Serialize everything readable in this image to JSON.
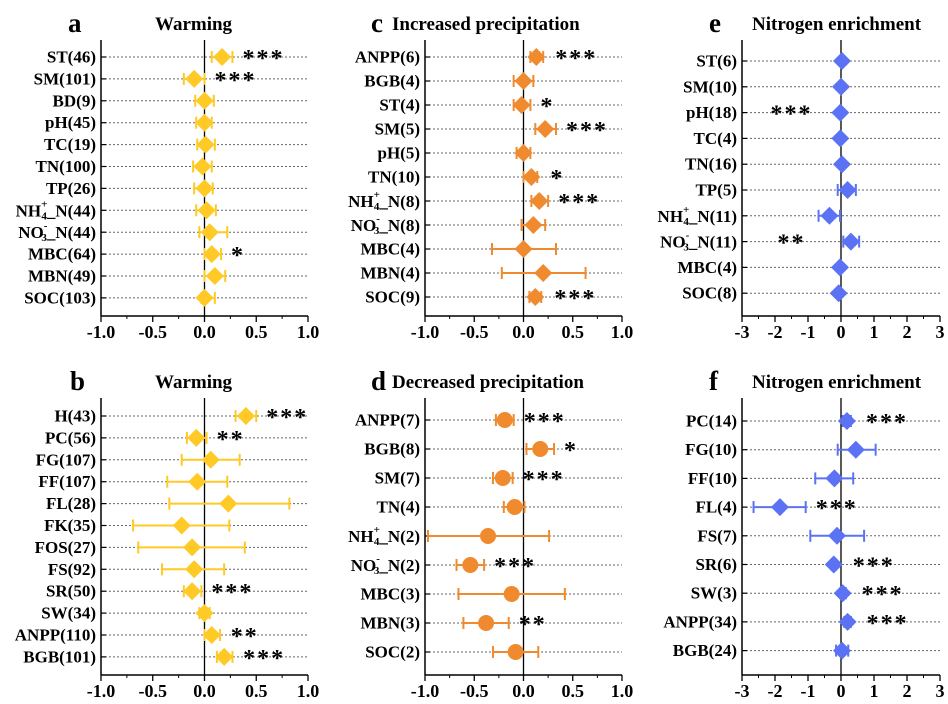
{
  "colors": {
    "warming": "#FFC926",
    "precip": "#F08A2E",
    "nitrogen": "#5B72F5"
  },
  "chart_data": [
    {
      "panel": "a",
      "title": "Warming",
      "type": "forest",
      "marker": "diamond",
      "color_key": "warming",
      "xlim": [
        -1,
        1
      ],
      "ticks": [
        -1.0,
        -0.5,
        0.0,
        0.5,
        1.0
      ],
      "tick_labels": [
        "-1.0",
        "-0.5",
        "0.0",
        "0.5",
        "1.0"
      ],
      "rows": [
        {
          "label": "ST(46)",
          "mean": 0.17,
          "lo": 0.07,
          "hi": 0.27,
          "sig": "***"
        },
        {
          "label": "SM(101)",
          "mean": -0.1,
          "lo": -0.2,
          "hi": 0.0,
          "sig": "***"
        },
        {
          "label": "BD(9)",
          "mean": 0.0,
          "lo": -0.09,
          "hi": 0.09,
          "sig": ""
        },
        {
          "label": "pH(45)",
          "mean": 0.0,
          "lo": -0.08,
          "hi": 0.07,
          "sig": ""
        },
        {
          "label": "TC(19)",
          "mean": 0.01,
          "lo": -0.07,
          "hi": 0.1,
          "sig": ""
        },
        {
          "label": "TN(100)",
          "mean": -0.02,
          "lo": -0.11,
          "hi": 0.07,
          "sig": ""
        },
        {
          "label": "TP(26)",
          "mean": 0.0,
          "lo": -0.1,
          "hi": 0.08,
          "sig": ""
        },
        {
          "label": "NH4+_N(44)",
          "mean": 0.02,
          "lo": -0.08,
          "hi": 0.11,
          "sig": ""
        },
        {
          "label": "NO3-_N(44)",
          "mean": 0.05,
          "lo": -0.05,
          "hi": 0.22,
          "sig": ""
        },
        {
          "label": "MBC(64)",
          "mean": 0.07,
          "lo": 0.0,
          "hi": 0.16,
          "sig": "*"
        },
        {
          "label": "MBN(49)",
          "mean": 0.1,
          "lo": 0.0,
          "hi": 0.2,
          "sig": ""
        },
        {
          "label": "SOC(103)",
          "mean": 0.0,
          "lo": -0.03,
          "hi": 0.1,
          "sig": ""
        }
      ]
    },
    {
      "panel": "c",
      "title": "Increased precipitation",
      "type": "forest",
      "marker": "diamond",
      "color_key": "precip",
      "xlim": [
        -1,
        1
      ],
      "ticks": [
        -1.0,
        -0.5,
        0.0,
        0.5,
        1.0
      ],
      "tick_labels": [
        "-1.0",
        "-0.5",
        "0.0",
        "0.5",
        "1.0"
      ],
      "rows": [
        {
          "label": "ANPP(6)",
          "mean": 0.13,
          "lo": 0.07,
          "hi": 0.2,
          "sig": "***"
        },
        {
          "label": "BGB(4)",
          "mean": 0.0,
          "lo": -0.1,
          "hi": 0.1,
          "sig": ""
        },
        {
          "label": "ST(4)",
          "mean": -0.02,
          "lo": -0.1,
          "hi": 0.07,
          "sig": "*"
        },
        {
          "label": "SM(5)",
          "mean": 0.22,
          "lo": 0.12,
          "hi": 0.33,
          "sig": "***"
        },
        {
          "label": "pH(5)",
          "mean": 0.0,
          "lo": -0.07,
          "hi": 0.07,
          "sig": ""
        },
        {
          "label": "TN(10)",
          "mean": 0.08,
          "lo": 0.0,
          "hi": 0.14,
          "sig": "*"
        },
        {
          "label": "NH4+_N(8)",
          "mean": 0.16,
          "lo": 0.08,
          "hi": 0.25,
          "sig": "***"
        },
        {
          "label": "NO3-_N(8)",
          "mean": 0.1,
          "lo": -0.02,
          "hi": 0.22,
          "sig": ""
        },
        {
          "label": "MBC(4)",
          "mean": 0.0,
          "lo": -0.32,
          "hi": 0.33,
          "sig": ""
        },
        {
          "label": "MBN(4)",
          "mean": 0.2,
          "lo": -0.22,
          "hi": 0.63,
          "sig": ""
        },
        {
          "label": "SOC(9)",
          "mean": 0.12,
          "lo": 0.06,
          "hi": 0.18,
          "sig": "***"
        }
      ]
    },
    {
      "panel": "e",
      "title": "Nitrogen enrichment",
      "type": "forest",
      "marker": "diamond",
      "color_key": "nitrogen",
      "xlim": [
        -3,
        3
      ],
      "ticks": [
        -3,
        -2,
        -1,
        0,
        1,
        2,
        3
      ],
      "tick_labels": [
        "-3",
        "-2",
        "-1",
        "0",
        "1",
        "2",
        "3"
      ],
      "rows": [
        {
          "label": "ST(6)",
          "mean": 0.03,
          "lo": 0.0,
          "hi": 0.06,
          "sig": ""
        },
        {
          "label": "SM(10)",
          "mean": 0.0,
          "lo": -0.03,
          "hi": 0.03,
          "sig": ""
        },
        {
          "label": "pH(18)",
          "mean": -0.02,
          "lo": -0.05,
          "hi": 0.01,
          "sig": "***"
        },
        {
          "label": "TC(4)",
          "mean": -0.02,
          "lo": -0.05,
          "hi": 0.01,
          "sig": ""
        },
        {
          "label": "TN(16)",
          "mean": 0.03,
          "lo": 0.0,
          "hi": 0.06,
          "sig": ""
        },
        {
          "label": "TP(5)",
          "mean": 0.2,
          "lo": -0.1,
          "hi": 0.45,
          "sig": ""
        },
        {
          "label": "NH4+_N(11)",
          "mean": -0.35,
          "lo": -0.68,
          "hi": -0.03,
          "sig": ""
        },
        {
          "label": "NO3-_N(11)",
          "mean": 0.3,
          "lo": 0.07,
          "hi": 0.55,
          "sig": "**"
        },
        {
          "label": "MBC(4)",
          "mean": -0.03,
          "lo": -0.06,
          "hi": 0.0,
          "sig": ""
        },
        {
          "label": "SOC(8)",
          "mean": -0.07,
          "lo": -0.1,
          "hi": -0.04,
          "sig": ""
        }
      ]
    },
    {
      "panel": "b",
      "title": "Warming",
      "type": "forest",
      "marker": "diamond",
      "color_key": "warming",
      "xlim": [
        -1,
        1
      ],
      "ticks": [
        -1.0,
        -0.5,
        0.0,
        0.5,
        1.0
      ],
      "tick_labels": [
        "-1.0",
        "-0.5",
        "0.0",
        "0.5",
        "1.0"
      ],
      "rows": [
        {
          "label": "H(43)",
          "mean": 0.4,
          "lo": 0.3,
          "hi": 0.5,
          "sig": "***"
        },
        {
          "label": "PC(56)",
          "mean": -0.08,
          "lo": -0.17,
          "hi": 0.02,
          "sig": "**"
        },
        {
          "label": "FG(107)",
          "mean": 0.06,
          "lo": -0.22,
          "hi": 0.34,
          "sig": ""
        },
        {
          "label": "FF(107)",
          "mean": -0.07,
          "lo": -0.36,
          "hi": 0.22,
          "sig": ""
        },
        {
          "label": "FL(28)",
          "mean": 0.23,
          "lo": -0.34,
          "hi": 0.82,
          "sig": ""
        },
        {
          "label": "FK(35)",
          "mean": -0.22,
          "lo": -0.69,
          "hi": 0.24,
          "sig": ""
        },
        {
          "label": "FOS(27)",
          "mean": -0.12,
          "lo": -0.64,
          "hi": 0.39,
          "sig": ""
        },
        {
          "label": "FS(92)",
          "mean": -0.1,
          "lo": -0.41,
          "hi": 0.19,
          "sig": ""
        },
        {
          "label": "SR(50)",
          "mean": -0.12,
          "lo": -0.2,
          "hi": -0.03,
          "sig": "***"
        },
        {
          "label": "SW(34)",
          "mean": 0.0,
          "lo": -0.05,
          "hi": 0.05,
          "sig": ""
        },
        {
          "label": "ANPP(110)",
          "mean": 0.07,
          "lo": 0.0,
          "hi": 0.15,
          "sig": "**"
        },
        {
          "label": "BGB(101)",
          "mean": 0.19,
          "lo": 0.12,
          "hi": 0.27,
          "sig": "***"
        }
      ]
    },
    {
      "panel": "d",
      "title": "Decreased precipitation",
      "type": "forest",
      "marker": "circle",
      "color_key": "precip",
      "xlim": [
        -1,
        1
      ],
      "ticks": [
        -1.0,
        -0.5,
        0.0,
        0.5,
        1.0
      ],
      "tick_labels": [
        "-1.0",
        "-0.5",
        "0.0",
        "0.5",
        "1.0"
      ],
      "rows": [
        {
          "label": "ANPP(7)",
          "mean": -0.19,
          "lo": -0.28,
          "hi": -0.1,
          "sig": "***"
        },
        {
          "label": "BGB(8)",
          "mean": 0.17,
          "lo": 0.03,
          "hi": 0.31,
          "sig": "*"
        },
        {
          "label": "SM(7)",
          "mean": -0.21,
          "lo": -0.31,
          "hi": -0.11,
          "sig": "***"
        },
        {
          "label": "TN(4)",
          "mean": -0.09,
          "lo": -0.2,
          "hi": 0.01,
          "sig": ""
        },
        {
          "label": "NH4+_N(2)",
          "mean": -0.36,
          "lo": -0.97,
          "hi": 0.26,
          "sig": ""
        },
        {
          "label": "NO3-_N(2)",
          "mean": -0.54,
          "lo": -0.68,
          "hi": -0.4,
          "sig": "***"
        },
        {
          "label": "MBC(3)",
          "mean": -0.12,
          "lo": -0.66,
          "hi": 0.42,
          "sig": ""
        },
        {
          "label": "MBN(3)",
          "mean": -0.38,
          "lo": -0.61,
          "hi": -0.15,
          "sig": "**"
        },
        {
          "label": "SOC(2)",
          "mean": -0.08,
          "lo": -0.31,
          "hi": 0.15,
          "sig": ""
        }
      ]
    },
    {
      "panel": "f",
      "title": "Nitrogen enrichment",
      "type": "forest",
      "marker": "diamond",
      "color_key": "nitrogen",
      "xlim": [
        -3,
        3
      ],
      "ticks": [
        -3,
        -2,
        -1,
        0,
        1,
        2,
        3
      ],
      "tick_labels": [
        "-3",
        "-2",
        "-1",
        "0",
        "1",
        "2",
        "3"
      ],
      "rows": [
        {
          "label": "PC(14)",
          "mean": 0.18,
          "lo": 0.05,
          "hi": 0.3,
          "sig": "***"
        },
        {
          "label": "FG(10)",
          "mean": 0.45,
          "lo": -0.1,
          "hi": 1.05,
          "sig": ""
        },
        {
          "label": "FF(10)",
          "mean": -0.2,
          "lo": -0.78,
          "hi": 0.37,
          "sig": ""
        },
        {
          "label": "FL(4)",
          "mean": -1.85,
          "lo": -2.65,
          "hi": -1.07,
          "sig": "***"
        },
        {
          "label": "FS(7)",
          "mean": -0.12,
          "lo": -0.93,
          "hi": 0.7,
          "sig": ""
        },
        {
          "label": "SR(6)",
          "mean": -0.22,
          "lo": -0.3,
          "hi": -0.15,
          "sig": "***"
        },
        {
          "label": "SW(3)",
          "mean": 0.05,
          "lo": -0.02,
          "hi": 0.15,
          "sig": "***"
        },
        {
          "label": "ANPP(34)",
          "mean": 0.2,
          "lo": 0.1,
          "hi": 0.3,
          "sig": "***"
        },
        {
          "label": "BGB(24)",
          "mean": 0.03,
          "lo": -0.15,
          "hi": 0.22,
          "sig": ""
        }
      ]
    }
  ]
}
